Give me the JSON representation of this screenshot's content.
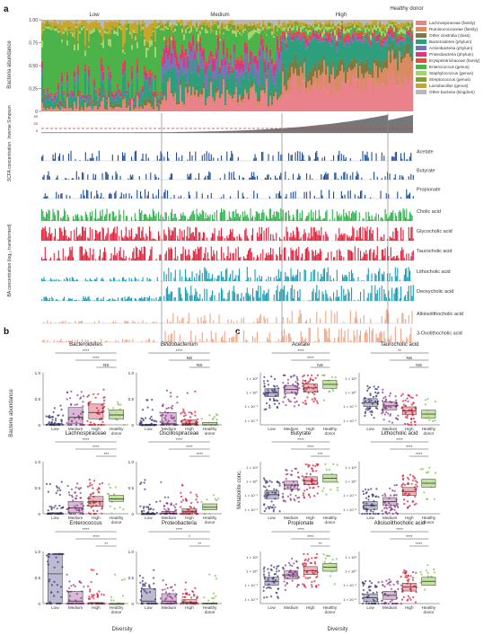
{
  "panels": {
    "a": "a",
    "b": "b",
    "c": "c"
  },
  "colors": {
    "low": "#3b3a7a",
    "medium": "#8e3a8c",
    "high": "#d8213a",
    "healthy": "#7fc24a",
    "healthy_box": "#b7dc8f",
    "scfa": "#1f4e96",
    "cholic": "#2eb34a",
    "glyco": "#e2203a",
    "tauro": "#e2203a",
    "litho": "#1e9bb2",
    "deoxy": "#1e9bb2",
    "allo": "#f2a585",
    "oxo": "#f2a585",
    "simpson": "#777777"
  },
  "diversity_labels": {
    "low": "Low",
    "medium": "Medium",
    "high": "High",
    "healthy": "Healthy donor"
  },
  "bacteria_axis": {
    "ylabel": "Bacteria abundance",
    "ticks": [
      "1.00",
      "0.75",
      "0.50",
      "0.25",
      "0"
    ]
  },
  "simpson_axis": {
    "ylabel": "Inverse Simpson",
    "ticks": [
      "40",
      "20",
      "0"
    ]
  },
  "scfa_axis": {
    "ylabel": "SCFA concentration"
  },
  "ba_axis": {
    "ylabel": "BA concentration (log₁₀ transformed)"
  },
  "legend": [
    {
      "label": "Lachnospiraceae (family)",
      "color": "#e9828a"
    },
    {
      "label": "Ruminococcaceae (family)",
      "color": "#d98c63"
    },
    {
      "label": "Other clostridia (class)",
      "color": "#7e7a3f"
    },
    {
      "label": "Bacteroidetes (phylum)",
      "color": "#2e9f7c"
    },
    {
      "label": "Actinobacteria (phylum)",
      "color": "#7b73b7"
    },
    {
      "label": "Proteobacteria (phylum)",
      "color": "#d63a7a"
    },
    {
      "label": "Erysipelotrichaceae (family)",
      "color": "#e84c3d"
    },
    {
      "label": "Enterococcus (genus)",
      "color": "#4bb34a"
    },
    {
      "label": "Staphylococcus (genus)",
      "color": "#a7d46a"
    },
    {
      "label": "Streptococcus (genus)",
      "color": "#7fa036"
    },
    {
      "label": "Lactobacillus (genus)",
      "color": "#c9a52a"
    },
    {
      "label": "Other bacteria (kingdom)",
      "color": "#b8b8b8"
    }
  ],
  "track_labels": [
    "Acetate",
    "Butyrate",
    "Propionate",
    "Cholic acid",
    "Glycocholic acid",
    "Taurocholic acid",
    "Lithocholic acid",
    "Deoxycholic acid",
    "Alloisolithocholic acid",
    "3-Oxolithocholic acid"
  ],
  "panel_b": {
    "ylabel": "Bacteria abundance",
    "y_ticks": [
      "0",
      "0.5",
      "1.0"
    ],
    "xlabel": "Diversity",
    "titles": [
      "Bacteroidetes",
      "Bifidobacterium",
      "Lachnospiraceae",
      "Oscillospiraceae",
      "Enterococcus",
      "Proteobacteria"
    ],
    "sig": [
      [
        "****",
        "****",
        "NS"
      ],
      [
        "****",
        "NS",
        "NS"
      ],
      [
        "****",
        "****",
        "***"
      ],
      [
        "****",
        "****",
        "****"
      ],
      [
        "****",
        "****",
        "**"
      ],
      [
        "****",
        "*",
        "**"
      ]
    ]
  },
  "panel_c": {
    "ylabel": "Metabolite conc.",
    "xlabel": "Diversity",
    "titles": [
      "Acetate",
      "Taurocholic acid",
      "Butyrate",
      "Lithocholic acid",
      "Propionate",
      "Alloisolithocholic acid"
    ],
    "sig": [
      [
        "****",
        "****",
        "NS"
      ],
      [
        "**",
        "NS",
        "NS"
      ],
      [
        "****",
        "****",
        "***"
      ],
      [
        "****",
        "****",
        "****"
      ],
      [
        "****",
        "****",
        "**"
      ],
      [
        "****",
        "****",
        "****"
      ]
    ],
    "y_ticks": [
      [
        "1 × 10¹",
        "1 × 10⁰",
        "1 × 10⁻¹",
        "1 × 10⁻²"
      ],
      [
        "1 × 10¹",
        "1 × 10⁰",
        "1 × 10⁻¹",
        "1 × 10⁻²"
      ],
      [
        "1 × 10¹",
        "1 × 10⁰",
        "1 × 10⁻¹",
        "1 × 10⁻²"
      ],
      [
        "1 × 10¹",
        "1 × 10⁰",
        "1 × 10⁻¹",
        "1 × 10⁻²"
      ],
      [
        "1 × 10¹",
        "1 × 10⁰",
        "1 × 10⁻¹",
        "1 × 10⁻²"
      ],
      [
        "1 × 10¹",
        "1 × 10⁰",
        "1 × 10⁻¹",
        "1 × 10⁻²"
      ]
    ]
  },
  "x_categories": [
    "Low",
    "Medium",
    "High",
    "Healthy donor"
  ],
  "chart_data": [
    {
      "type": "area",
      "stacked": true,
      "y_axis": "Bacteria abundance",
      "ylim": [
        0,
        1
      ],
      "groups": [
        "Low",
        "Medium",
        "High",
        "Healthy donor"
      ],
      "series_names": [
        "Lachnospiraceae (family)",
        "Ruminococcaceae (family)",
        "Other clostridia (class)",
        "Bacteroidetes (phylum)",
        "Actinobacteria (phylum)",
        "Proteobacteria (phylum)",
        "Erysipelotrichaceae (family)",
        "Enterococcus (genus)",
        "Staphylococcus (genus)",
        "Streptococcus (genus)",
        "Lactobacillus (genus)",
        "Other bacteria (kingdom)"
      ]
    },
    {
      "type": "bar",
      "y_axis": "Inverse Simpson",
      "ylim": [
        0,
        40
      ]
    },
    {
      "type": "bar",
      "y_axis": "SCFA concentration",
      "series_names": [
        "Acetate",
        "Butyrate",
        "Propionate"
      ]
    },
    {
      "type": "bar",
      "y_axis": "BA concentration (log₁₀ transformed)",
      "series_names": [
        "Cholic acid",
        "Glycocholic acid",
        "Taurocholic acid",
        "Lithocholic acid",
        "Deoxycholic acid",
        "Alloisolithocholic acid",
        "3-Oxolithocholic acid"
      ]
    },
    {
      "type": "scatter",
      "subtype": "box",
      "panel": "b",
      "categories": [
        "Low",
        "Medium",
        "High",
        "Healthy donor"
      ],
      "ylim": [
        0,
        1
      ],
      "series": [
        {
          "name": "Bacteroidetes",
          "medians": [
            0.0,
            0.15,
            0.25,
            0.2
          ],
          "q1": [
            0.0,
            0.03,
            0.12,
            0.12
          ],
          "q3": [
            0.03,
            0.35,
            0.42,
            0.3
          ]
        },
        {
          "name": "Bifidobacterium",
          "medians": [
            0.0,
            0.02,
            0.02,
            0.0
          ],
          "q1": [
            0.0,
            0.0,
            0.0,
            0.0
          ],
          "q3": [
            0.0,
            0.25,
            0.1,
            0.05
          ]
        },
        {
          "name": "Lachnospiraceae",
          "medians": [
            0.0,
            0.12,
            0.25,
            0.3
          ],
          "q1": [
            0.0,
            0.02,
            0.15,
            0.25
          ],
          "q3": [
            0.02,
            0.25,
            0.35,
            0.37
          ]
        },
        {
          "name": "Oscillospiraceae",
          "medians": [
            0.0,
            0.01,
            0.05,
            0.13
          ],
          "q1": [
            0.0,
            0.0,
            0.02,
            0.08
          ],
          "q3": [
            0.0,
            0.05,
            0.1,
            0.2
          ]
        },
        {
          "name": "Enterococcus",
          "medians": [
            0.6,
            0.05,
            0.0,
            0.0
          ],
          "q1": [
            0.0,
            0.0,
            0.0,
            0.0
          ],
          "q3": [
            1.0,
            0.25,
            0.02,
            0.0
          ]
        },
        {
          "name": "Proteobacteria",
          "medians": [
            0.05,
            0.05,
            0.02,
            0.0
          ],
          "q1": [
            0.0,
            0.0,
            0.0,
            0.0
          ],
          "q3": [
            0.3,
            0.2,
            0.08,
            0.01
          ]
        }
      ]
    },
    {
      "type": "scatter",
      "subtype": "box",
      "panel": "c",
      "categories": [
        "Low",
        "Medium",
        "High",
        "Healthy donor"
      ],
      "y_scale": "log",
      "series": [
        {
          "name": "Acetate",
          "medians": [
            0.8,
            2.0,
            3.0,
            8.0
          ]
        },
        {
          "name": "Taurocholic acid",
          "medians": [
            0.05,
            0.02,
            0.005,
            0.002
          ]
        },
        {
          "name": "Butyrate",
          "medians": [
            0.02,
            0.3,
            1.0,
            2.0
          ]
        },
        {
          "name": "Lithocholic acid",
          "medians": [
            0.001,
            0.003,
            0.05,
            0.5
          ]
        },
        {
          "name": "Propionate",
          "medians": [
            0.05,
            0.3,
            1.0,
            2.5
          ]
        },
        {
          "name": "Alloisolithocholic acid",
          "medians": [
            0.0005,
            0.001,
            0.01,
            0.05
          ]
        }
      ]
    }
  ]
}
